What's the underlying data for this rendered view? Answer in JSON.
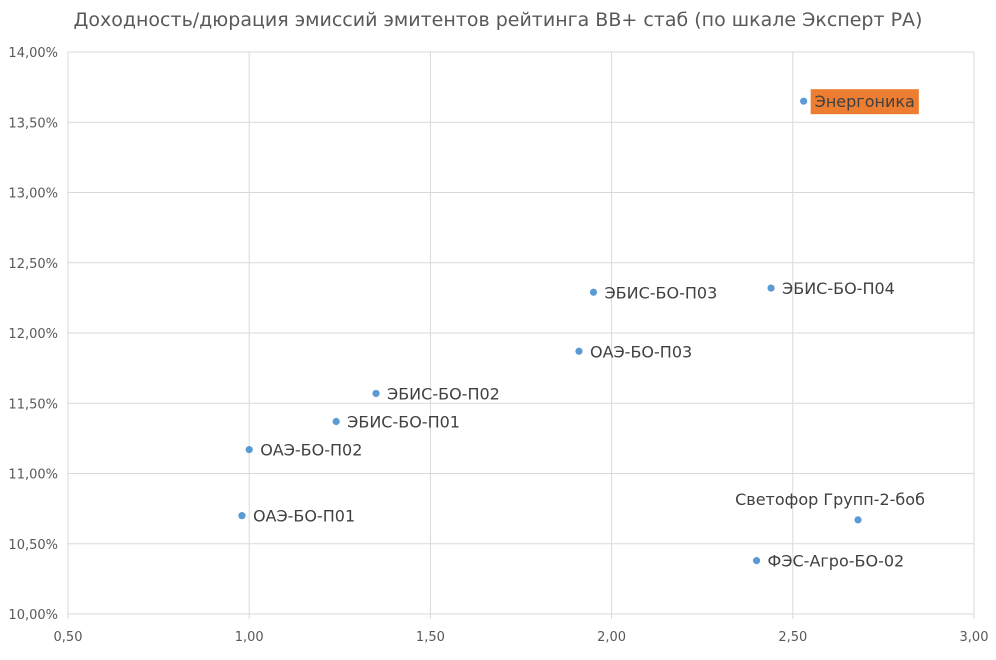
{
  "chart_data": {
    "type": "scatter",
    "title": "Доходность/дюрация эмиссий эмитентов рейтинга BB+ стаб (по шкале Эксперт РА)",
    "xlabel": "",
    "ylabel": "",
    "xlim": [
      0.5,
      3.0
    ],
    "ylim": [
      0.1,
      0.14
    ],
    "x_ticks": [
      "0,50",
      "1,00",
      "1,50",
      "2,00",
      "2,50",
      "3,00"
    ],
    "y_ticks": [
      "10,00%",
      "10,50%",
      "11,00%",
      "11,50%",
      "12,00%",
      "12,50%",
      "13,00%",
      "13,50%",
      "14,00%"
    ],
    "grid": true,
    "marker_color": "#5b9bd5",
    "highlight_color": "#ed7d31",
    "points": [
      {
        "label": "Энергоника",
        "x": 2.53,
        "y": 0.1365,
        "highlight": true
      },
      {
        "label": "ЭБИС-БО-П03",
        "x": 1.95,
        "y": 0.1229
      },
      {
        "label": "ЭБИС-БО-П04",
        "x": 2.44,
        "y": 0.1232
      },
      {
        "label": "ОАЭ-БО-П03",
        "x": 1.91,
        "y": 0.1187
      },
      {
        "label": "ЭБИС-БО-П02",
        "x": 1.35,
        "y": 0.1157
      },
      {
        "label": "ЭБИС-БО-П01",
        "x": 1.24,
        "y": 0.1137
      },
      {
        "label": "ОАЭ-БО-П02",
        "x": 1.0,
        "y": 0.1117
      },
      {
        "label": "ОАЭ-БО-П01",
        "x": 0.98,
        "y": 0.107
      },
      {
        "label": "Светофор Групп-2-боб",
        "x": 2.68,
        "y": 0.1067
      },
      {
        "label": "ФЭС-Агро-БО-02",
        "x": 2.4,
        "y": 0.1038
      }
    ]
  }
}
